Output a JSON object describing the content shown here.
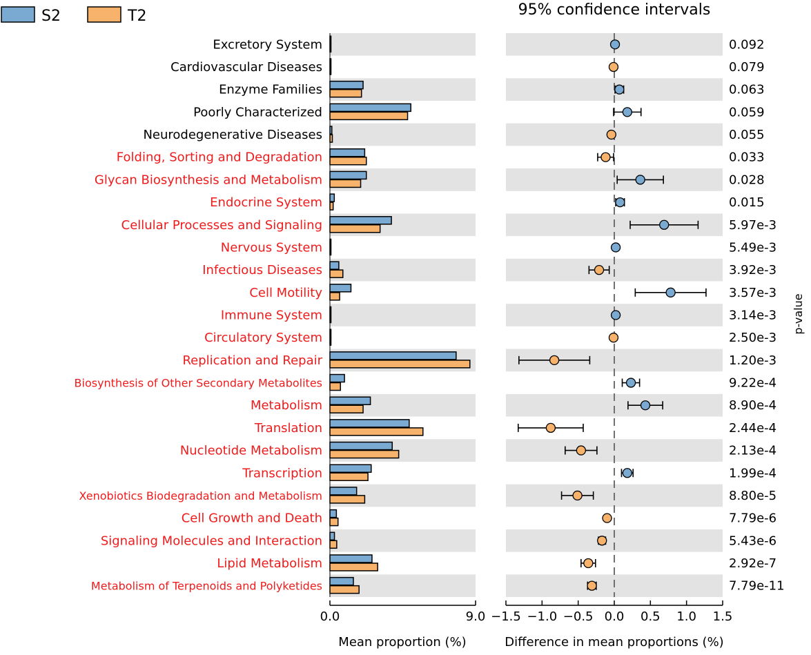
{
  "chart_data": {
    "type": "bar",
    "title": "95% confidence intervals",
    "legend": [
      {
        "name": "S2",
        "color": "#7aa9d1"
      },
      {
        "name": "T2",
        "color": "#f7b26b"
      }
    ],
    "left_panel": {
      "xlabel": "Mean proportion (%)",
      "xlim": [
        0,
        9.0
      ],
      "ticks": [
        "0.0",
        "9.0"
      ]
    },
    "right_panel": {
      "xlabel": "Difference in mean proportions (%)",
      "xlim": [
        -1.5,
        1.5
      ],
      "ticks": [
        "−1.5",
        "−1.0",
        "−0.5",
        "0.0",
        "0.5",
        "1.0",
        "1.5"
      ]
    },
    "pvalue_label": "p-value",
    "colors": {
      "significant": "#ee1c1c",
      "normal": "#000000",
      "shade": "#e3e3e3",
      "edge": "#000000"
    },
    "categories": [
      {
        "name": "Excretory System",
        "significant": false,
        "s2": 0.02,
        "t2": 0.02,
        "diff": 0.01,
        "ci": [
          0.0,
          0.02
        ],
        "favors": "S2",
        "p": "0.092"
      },
      {
        "name": "Cardiovascular Diseases",
        "significant": false,
        "s2": 0.02,
        "t2": 0.02,
        "diff": -0.01,
        "ci": [
          -0.02,
          0.0
        ],
        "favors": "T2",
        "p": "0.079"
      },
      {
        "name": "Enzyme Families",
        "significant": false,
        "s2": 2.05,
        "t2": 1.95,
        "diff": 0.07,
        "ci": [
          0.01,
          0.13
        ],
        "favors": "S2",
        "p": "0.063"
      },
      {
        "name": "Poorly Characterized",
        "significant": false,
        "s2": 5.0,
        "t2": 4.8,
        "diff": 0.18,
        "ci": [
          -0.01,
          0.37
        ],
        "favors": "S2",
        "p": "0.059"
      },
      {
        "name": "Neurodegenerative Diseases",
        "significant": false,
        "s2": 0.12,
        "t2": 0.15,
        "diff": -0.04,
        "ci": [
          -0.07,
          -0.01
        ],
        "favors": "T2",
        "p": "0.055"
      },
      {
        "name": "Folding, Sorting and Degradation",
        "significant": true,
        "s2": 2.15,
        "t2": 2.25,
        "diff": -0.12,
        "ci": [
          -0.23,
          -0.01
        ],
        "favors": "T2",
        "p": "0.033"
      },
      {
        "name": "Glycan Biosynthesis and Metabolism",
        "significant": true,
        "s2": 2.25,
        "t2": 1.9,
        "diff": 0.36,
        "ci": [
          0.04,
          0.68
        ],
        "favors": "S2",
        "p": "0.028"
      },
      {
        "name": "Endocrine System",
        "significant": true,
        "s2": 0.27,
        "t2": 0.2,
        "diff": 0.08,
        "ci": [
          0.02,
          0.14
        ],
        "favors": "S2",
        "p": "0.015"
      },
      {
        "name": "Cellular Processes and Signaling",
        "significant": true,
        "s2": 3.8,
        "t2": 3.1,
        "diff": 0.69,
        "ci": [
          0.22,
          1.16
        ],
        "favors": "S2",
        "p": "5.97e-3"
      },
      {
        "name": "Nervous System",
        "significant": true,
        "s2": 0.06,
        "t2": 0.04,
        "diff": 0.02,
        "ci": [
          0.01,
          0.03
        ],
        "favors": "S2",
        "p": "5.49e-3"
      },
      {
        "name": "Infectious Diseases",
        "significant": true,
        "s2": 0.55,
        "t2": 0.8,
        "diff": -0.21,
        "ci": [
          -0.35,
          -0.07
        ],
        "favors": "T2",
        "p": "3.92e-3"
      },
      {
        "name": "Cell Motility",
        "significant": true,
        "s2": 1.3,
        "t2": 0.6,
        "diff": 0.78,
        "ci": [
          0.29,
          1.27
        ],
        "favors": "S2",
        "p": "3.57e-3"
      },
      {
        "name": "Immune System",
        "significant": true,
        "s2": 0.05,
        "t2": 0.03,
        "diff": 0.02,
        "ci": [
          0.01,
          0.03
        ],
        "favors": "S2",
        "p": "3.14e-3"
      },
      {
        "name": "Circulatory System",
        "significant": true,
        "s2": 0.02,
        "t2": 0.03,
        "diff": -0.01,
        "ci": [
          -0.02,
          0.0
        ],
        "favors": "T2",
        "p": "2.50e-3"
      },
      {
        "name": "Replication and Repair",
        "significant": true,
        "s2": 7.8,
        "t2": 8.65,
        "diff": -0.83,
        "ci": [
          -1.32,
          -0.34
        ],
        "favors": "T2",
        "p": "1.20e-3"
      },
      {
        "name": "Biosynthesis of Other Secondary Metabolites",
        "significant": true,
        "s2": 0.9,
        "t2": 0.65,
        "diff": 0.23,
        "ci": [
          0.11,
          0.35
        ],
        "favors": "S2",
        "p": "9.22e-4"
      },
      {
        "name": "Metabolism",
        "significant": true,
        "s2": 2.5,
        "t2": 2.05,
        "diff": 0.43,
        "ci": [
          0.19,
          0.67
        ],
        "favors": "S2",
        "p": "8.90e-4"
      },
      {
        "name": "Translation",
        "significant": true,
        "s2": 4.9,
        "t2": 5.75,
        "diff": -0.88,
        "ci": [
          -1.33,
          -0.43
        ],
        "favors": "T2",
        "p": "2.44e-4"
      },
      {
        "name": "Nucleotide Metabolism",
        "significant": true,
        "s2": 3.85,
        "t2": 4.25,
        "diff": -0.46,
        "ci": [
          -0.68,
          -0.24
        ],
        "favors": "T2",
        "p": "2.13e-4"
      },
      {
        "name": "Transcription",
        "significant": true,
        "s2": 2.55,
        "t2": 2.35,
        "diff": 0.18,
        "ci": [
          0.1,
          0.26
        ],
        "favors": "S2",
        "p": "1.99e-4"
      },
      {
        "name": "Xenobiotics Biodegradation and Metabolism",
        "significant": true,
        "s2": 1.65,
        "t2": 2.15,
        "diff": -0.51,
        "ci": [
          -0.73,
          -0.29
        ],
        "favors": "T2",
        "p": "8.80e-5"
      },
      {
        "name": "Cell Growth and Death",
        "significant": true,
        "s2": 0.4,
        "t2": 0.5,
        "diff": -0.1,
        "ci": [
          -0.13,
          -0.07
        ],
        "favors": "T2",
        "p": "7.79e-6"
      },
      {
        "name": "Signaling Molecules and Interaction",
        "significant": true,
        "s2": 0.28,
        "t2": 0.42,
        "diff": -0.17,
        "ci": [
          -0.22,
          -0.12
        ],
        "favors": "T2",
        "p": "5.43e-6"
      },
      {
        "name": "Lipid Metabolism",
        "significant": true,
        "s2": 2.6,
        "t2": 2.95,
        "diff": -0.36,
        "ci": [
          -0.46,
          -0.26
        ],
        "favors": "T2",
        "p": "2.92e-7"
      },
      {
        "name": "Metabolism of Terpenoids and Polyketides",
        "significant": true,
        "s2": 1.45,
        "t2": 1.8,
        "diff": -0.31,
        "ci": [
          -0.37,
          -0.25
        ],
        "favors": "T2",
        "p": "7.79e-11"
      }
    ]
  }
}
